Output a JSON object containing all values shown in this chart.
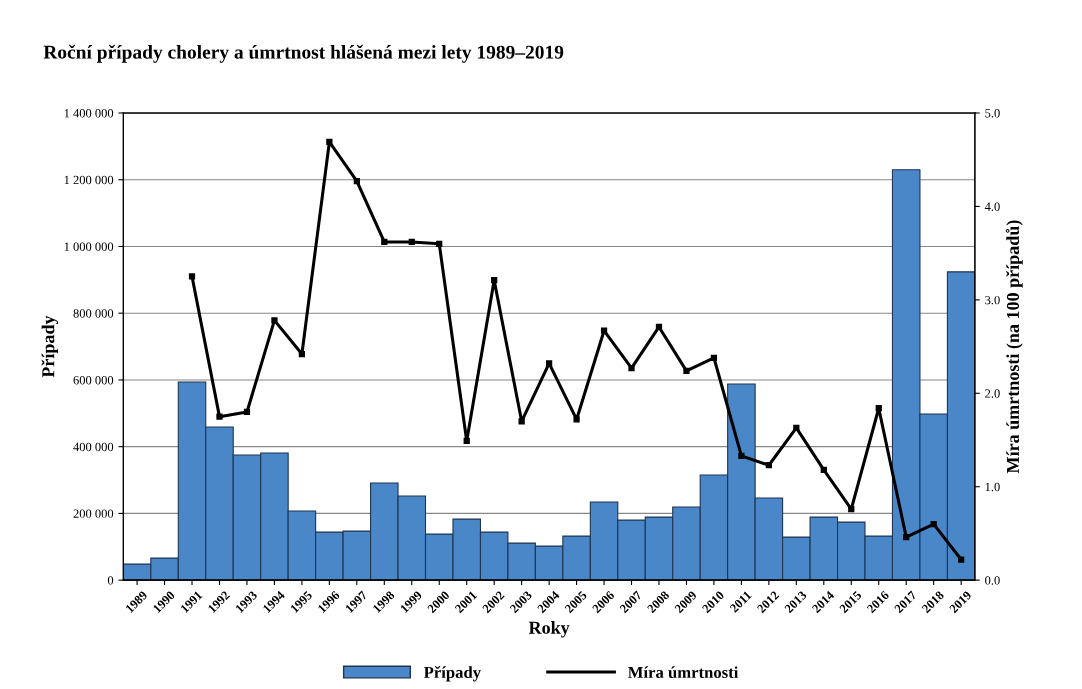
{
  "chart_data": {
    "type": "bar",
    "title": "Roční případy cholery a úmrtnost hlášená mezi lety 1989–2019",
    "xlabel": "Roky",
    "ylabel": "Případy",
    "y2label": "Míra úmrtnosti (na 100 případů)",
    "categories": [
      "1989",
      "1990",
      "1991",
      "1992",
      "1993",
      "1994",
      "1995",
      "1996",
      "1997",
      "1998",
      "1999",
      "2000",
      "2001",
      "2002",
      "2003",
      "2004",
      "2005",
      "2006",
      "2007",
      "2008",
      "2009",
      "2010",
      "2011",
      "2012",
      "2013",
      "2014",
      "2015",
      "2016",
      "2017",
      "2018",
      "2019"
    ],
    "series": [
      {
        "name": "Případy",
        "color": "#4a87c9",
        "values": [
          48000,
          66000,
          594000,
          459000,
          375000,
          381000,
          207000,
          144000,
          147000,
          291000,
          252000,
          138000,
          183000,
          144000,
          111000,
          102000,
          132000,
          234000,
          180000,
          189000,
          219000,
          315000,
          588000,
          246000,
          129000,
          189000,
          174000,
          132000,
          1230000,
          498000,
          924000
        ]
      },
      {
        "name": "Míra úmrtnosti",
        "type": "line",
        "axis": "y2",
        "color": "#000000",
        "marker": "square",
        "values": [
          null,
          null,
          3.25,
          1.75,
          1.8,
          2.78,
          2.42,
          4.69,
          4.27,
          3.62,
          3.62,
          3.6,
          1.49,
          3.21,
          1.7,
          2.32,
          1.72,
          2.67,
          2.27,
          2.71,
          2.24,
          2.38,
          1.33,
          1.23,
          1.63,
          1.18,
          0.76,
          1.84,
          0.46,
          0.6,
          0.22
        ]
      }
    ],
    "ylim": [
      0,
      1400000
    ],
    "yticks": [
      0,
      {
        "value": 200000,
        "label": "200 000"
      },
      {
        "value": 400000,
        "label": "400 000"
      },
      {
        "value": 600000,
        "label": "600 000"
      },
      {
        "value": 800000,
        "label": "800 000"
      },
      {
        "value": 1000000,
        "label": "1 000 000"
      },
      {
        "value": 1200000,
        "label": "1 200 000"
      },
      {
        "value": 1400000,
        "label": "1 400 000"
      }
    ],
    "y2lim": [
      0,
      5
    ],
    "y2ticks": [
      {
        "value": 0,
        "label": "0.0"
      },
      {
        "value": 1,
        "label": "1.0"
      },
      {
        "value": 2,
        "label": "2.0"
      },
      {
        "value": 3,
        "label": "3.0"
      },
      {
        "value": 4,
        "label": "4.0"
      },
      {
        "value": 5,
        "label": "5.0"
      }
    ],
    "grid": "y",
    "legend": "bottom"
  }
}
